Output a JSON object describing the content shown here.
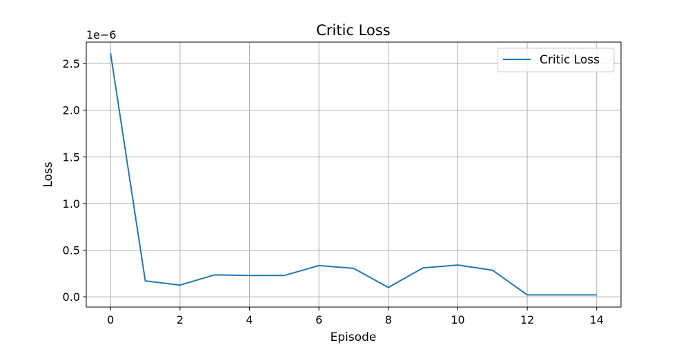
{
  "chart_data": {
    "type": "line",
    "title": "Critic Loss",
    "xlabel": "Episode",
    "ylabel": "Loss",
    "y_offset_label": "1e−6",
    "x": [
      0,
      1,
      2,
      3,
      4,
      5,
      6,
      7,
      8,
      9,
      10,
      11,
      12,
      13,
      14
    ],
    "series": [
      {
        "name": "Critic Loss",
        "color": "#1f77b4",
        "values": [
          2.61,
          0.17,
          0.125,
          0.235,
          0.228,
          0.228,
          0.335,
          0.305,
          0.1,
          0.31,
          0.34,
          0.285,
          0.02,
          0.02,
          0.02
        ]
      }
    ],
    "xlim": [
      -0.7,
      14.7
    ],
    "ylim": [
      -0.11,
      2.73
    ],
    "xticks": [
      0,
      2,
      4,
      6,
      8,
      10,
      12,
      14
    ],
    "xtick_labels": [
      "0",
      "2",
      "4",
      "6",
      "8",
      "10",
      "12",
      "14"
    ],
    "yticks": [
      0.0,
      0.5,
      1.0,
      1.5,
      2.0,
      2.5
    ],
    "ytick_labels": [
      "0.0",
      "0.5",
      "1.0",
      "1.5",
      "2.0",
      "2.5"
    ],
    "grid": true,
    "legend_position": "top-right",
    "grid_color": "#b0b0b0"
  }
}
